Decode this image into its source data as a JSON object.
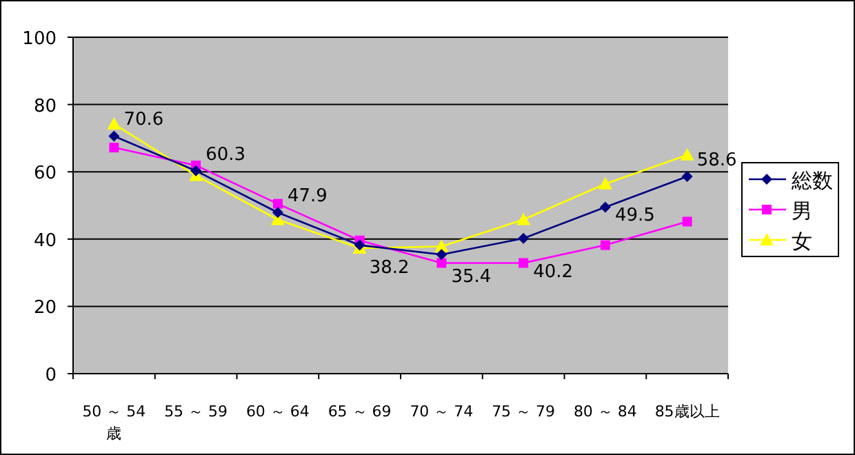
{
  "chart_data": {
    "type": "line",
    "categories": [
      "50 ～ 54 歳",
      "55 ～ 59",
      "60 ～ 64",
      "65 ～ 69",
      "70 ～ 74",
      "75 ～ 79",
      "80 ～ 84",
      "85歳以上"
    ],
    "series": [
      {
        "name": "総数",
        "color": "#000080",
        "marker": "diamond",
        "values": [
          70.6,
          60.3,
          47.9,
          38.2,
          35.4,
          40.2,
          49.5,
          58.6
        ],
        "value_labels": [
          "70.6",
          "60.3",
          "47.9",
          "38.2",
          "35.4",
          "40.2",
          "49.5",
          "58.6"
        ]
      },
      {
        "name": "男",
        "color": "#ff00ff",
        "marker": "square",
        "values": [
          67.2,
          61.9,
          50.5,
          39.6,
          32.9,
          32.9,
          38.2,
          45.2
        ]
      },
      {
        "name": "女",
        "color": "#ffff00",
        "marker": "triangle",
        "values": [
          74.2,
          58.9,
          45.8,
          37.3,
          37.8,
          45.8,
          56.4,
          65.0
        ]
      }
    ],
    "ylim": [
      0,
      100
    ],
    "yticks": [
      0,
      20,
      40,
      60,
      80,
      100
    ],
    "grid": "y",
    "legend": "right"
  }
}
